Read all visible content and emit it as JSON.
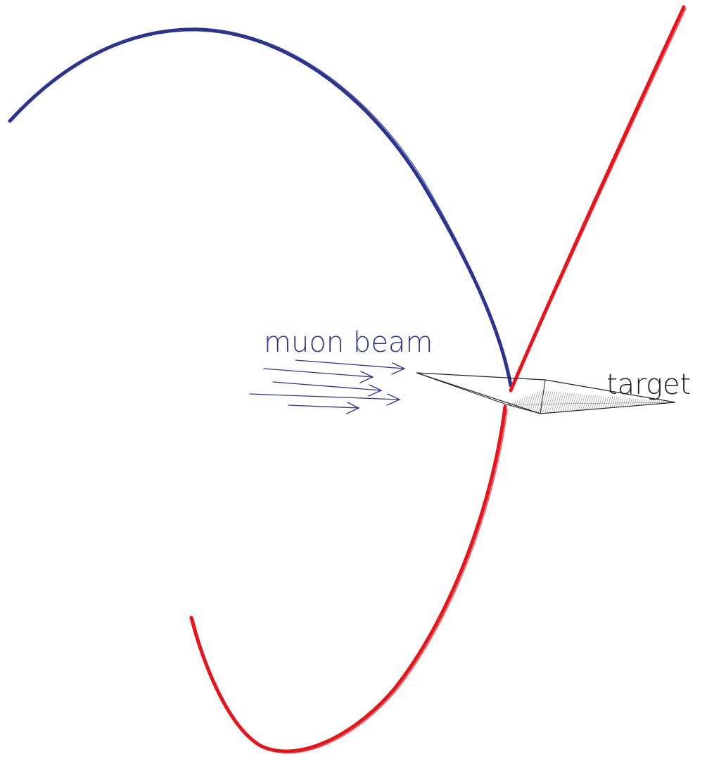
{
  "labels": {
    "beam": "muon beam",
    "target": "target"
  },
  "colors": {
    "beam": "#2b3590",
    "positive_track": "#2b3590",
    "negative_track": "#e8141c",
    "target_outline": "#222222",
    "target_hatch": "#555555",
    "background": "#ffffff"
  }
}
